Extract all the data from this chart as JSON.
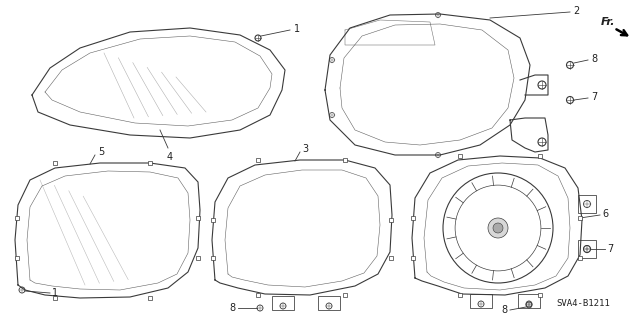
{
  "background_color": "#ffffff",
  "line_color": "#3a3a3a",
  "text_color": "#222222",
  "fig_width": 6.4,
  "fig_height": 3.19,
  "footer_text": "SVA4-B1211",
  "dpi": 100
}
